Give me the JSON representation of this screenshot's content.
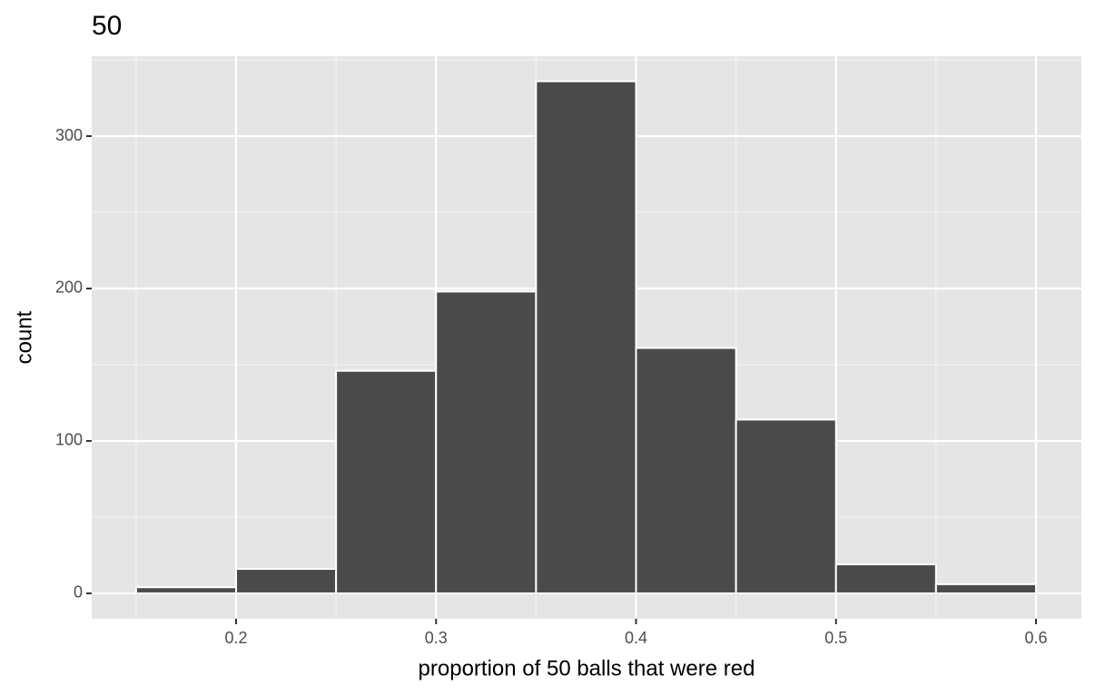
{
  "chart_data": {
    "type": "histogram",
    "title": "50",
    "x_label": "proportion of 50 balls that were red",
    "y_label": "count",
    "bins": [
      0.15,
      0.2,
      0.25,
      0.3,
      0.35,
      0.4,
      0.45,
      0.5,
      0.55,
      0.6
    ],
    "counts": [
      4,
      16,
      146,
      198,
      336,
      161,
      114,
      19,
      6
    ],
    "color": "#4a4a4a",
    "edge_color": "#ffffff",
    "xlim": [
      0.1278,
      0.6227
    ],
    "ylim": [
      -16.7,
      352.4
    ],
    "xticks": [
      0.2,
      0.3,
      0.4,
      0.5,
      0.6
    ],
    "yticks": [
      0,
      100,
      200,
      300
    ],
    "grid": true
  }
}
